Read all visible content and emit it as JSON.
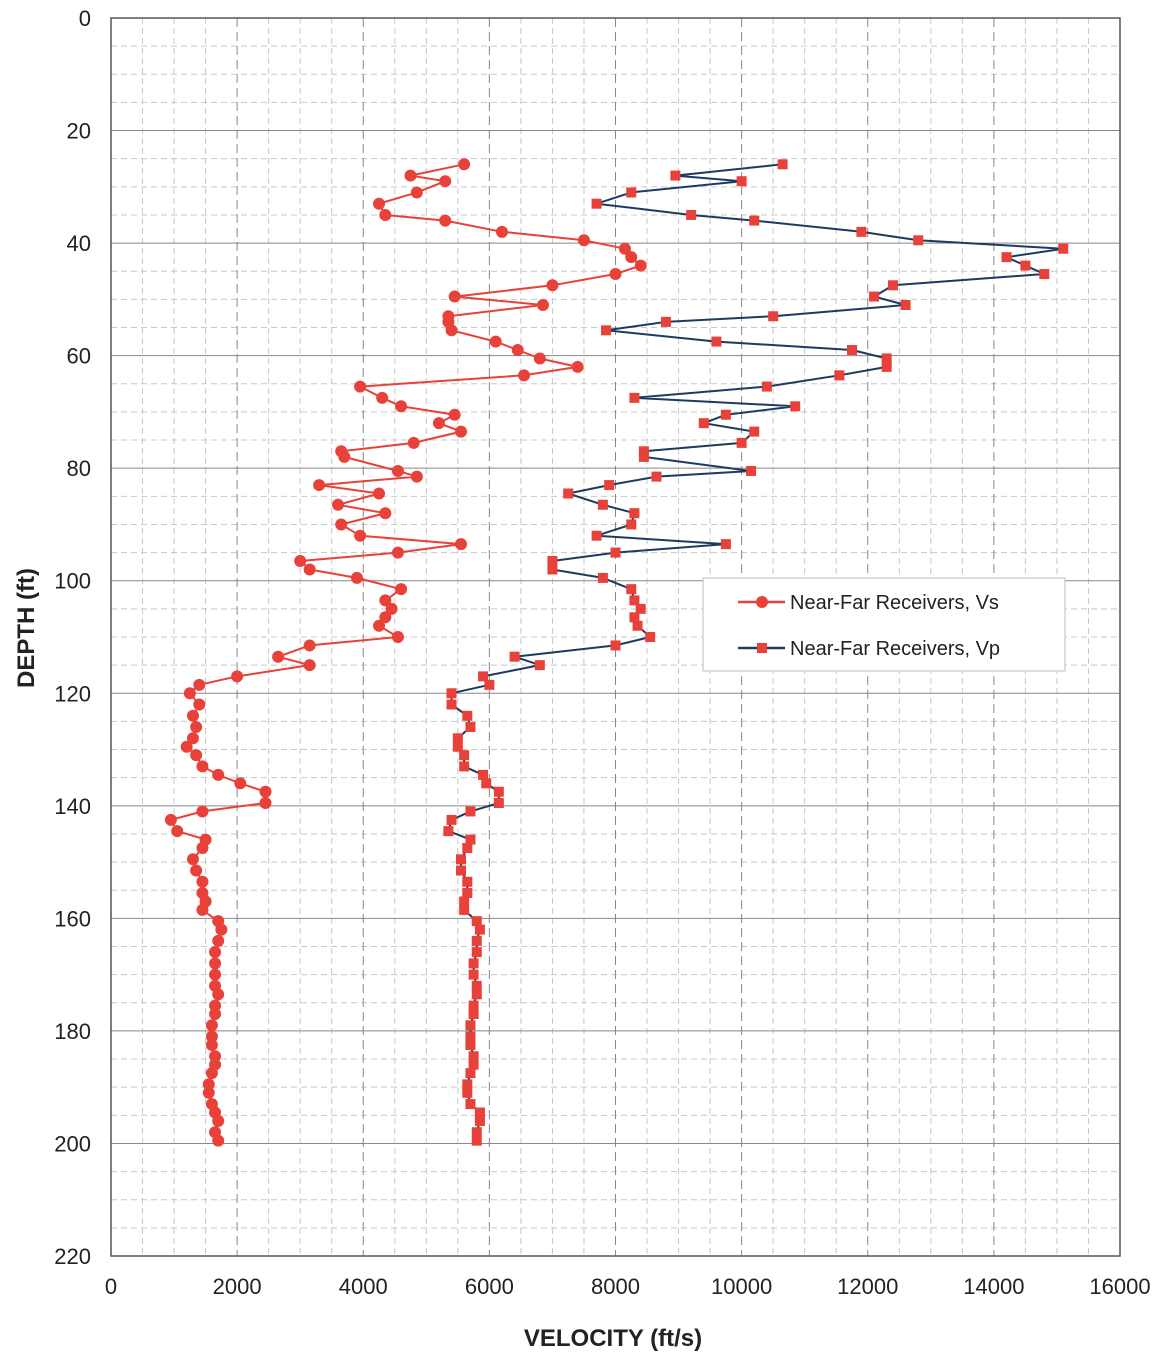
{
  "chart_data": {
    "type": "scatter",
    "xlabel": "VELOCITY (ft/s)",
    "ylabel": "DEPTH (ft)",
    "xlim": [
      0,
      16000
    ],
    "ylim": [
      220,
      0
    ],
    "x_ticks": [
      "0",
      "2000",
      "4000",
      "6000",
      "8000",
      "10000",
      "12000",
      "14000",
      "16000"
    ],
    "y_ticks": [
      "0",
      "20",
      "40",
      "60",
      "80",
      "100",
      "120",
      "140",
      "160",
      "180",
      "200",
      "220"
    ],
    "grid": true,
    "legend_position": "right-middle",
    "colors": {
      "vs": "#e8413a",
      "vp": "#1f3a5f",
      "vp_marker": "#e8413a"
    },
    "series": [
      {
        "name": "Near-Far Receivers, Vs",
        "marker": "circle",
        "points": [
          [
            5600,
            26
          ],
          [
            4750,
            28
          ],
          [
            5300,
            29
          ],
          [
            4850,
            31
          ],
          [
            4250,
            33
          ],
          [
            4350,
            35
          ],
          [
            5300,
            36
          ],
          [
            6200,
            38
          ],
          [
            7500,
            39.5
          ],
          [
            8150,
            41
          ],
          [
            8250,
            42.5
          ],
          [
            8400,
            44
          ],
          [
            8000,
            45.5
          ],
          [
            7000,
            47.5
          ],
          [
            5450,
            49.5
          ],
          [
            6850,
            51
          ],
          [
            5350,
            53
          ],
          [
            5350,
            54
          ],
          [
            5400,
            55.5
          ],
          [
            6100,
            57.5
          ],
          [
            6450,
            59
          ],
          [
            6800,
            60.5
          ],
          [
            7400,
            62
          ],
          [
            6550,
            63.5
          ],
          [
            3950,
            65.5
          ],
          [
            4300,
            67.5
          ],
          [
            4600,
            69
          ],
          [
            5450,
            70.5
          ],
          [
            5200,
            72
          ],
          [
            5550,
            73.5
          ],
          [
            4800,
            75.5
          ],
          [
            3650,
            77
          ],
          [
            3700,
            78
          ],
          [
            4550,
            80.5
          ],
          [
            4850,
            81.5
          ],
          [
            3300,
            83
          ],
          [
            4250,
            84.5
          ],
          [
            3600,
            86.5
          ],
          [
            4350,
            88
          ],
          [
            3650,
            90
          ],
          [
            3950,
            92
          ],
          [
            5550,
            93.5
          ],
          [
            4550,
            95
          ],
          [
            3000,
            96.5
          ],
          [
            3150,
            98
          ],
          [
            3900,
            99.5
          ],
          [
            4600,
            101.5
          ],
          [
            4350,
            103.5
          ],
          [
            4450,
            105
          ],
          [
            4350,
            106.5
          ],
          [
            4250,
            108
          ],
          [
            4550,
            110
          ],
          [
            3150,
            111.5
          ],
          [
            2650,
            113.5
          ],
          [
            3150,
            115
          ],
          [
            2000,
            117
          ],
          [
            1400,
            118.5
          ],
          [
            1250,
            120
          ],
          [
            1400,
            122
          ],
          [
            1300,
            124
          ],
          [
            1350,
            126
          ],
          [
            1300,
            128
          ],
          [
            1200,
            129.5
          ],
          [
            1350,
            131
          ],
          [
            1450,
            133
          ],
          [
            1700,
            134.5
          ],
          [
            2050,
            136
          ],
          [
            2450,
            137.5
          ],
          [
            2450,
            139.5
          ],
          [
            1450,
            141
          ],
          [
            950,
            142.5
          ],
          [
            1050,
            144.5
          ],
          [
            1500,
            146
          ],
          [
            1450,
            147.5
          ],
          [
            1300,
            149.5
          ],
          [
            1350,
            151.5
          ],
          [
            1450,
            153.5
          ],
          [
            1450,
            155.5
          ],
          [
            1500,
            157
          ],
          [
            1450,
            158.5
          ],
          [
            1700,
            160.5
          ],
          [
            1750,
            162
          ],
          [
            1700,
            164
          ],
          [
            1650,
            166
          ],
          [
            1650,
            168
          ],
          [
            1650,
            170
          ],
          [
            1650,
            172
          ],
          [
            1700,
            173.5
          ],
          [
            1650,
            175.5
          ],
          [
            1650,
            177
          ],
          [
            1600,
            179
          ],
          [
            1600,
            181
          ],
          [
            1600,
            182.5
          ],
          [
            1650,
            184.5
          ],
          [
            1650,
            186
          ],
          [
            1600,
            187.5
          ],
          [
            1550,
            189.5
          ],
          [
            1550,
            191
          ],
          [
            1600,
            193
          ],
          [
            1650,
            194.5
          ],
          [
            1700,
            196
          ],
          [
            1650,
            198
          ],
          [
            1700,
            199.5
          ]
        ]
      },
      {
        "name": "Near-Far Receivers, Vp",
        "marker": "square",
        "points": [
          [
            10650,
            26
          ],
          [
            8950,
            28
          ],
          [
            10000,
            29
          ],
          [
            8250,
            31
          ],
          [
            7700,
            33
          ],
          [
            9200,
            35
          ],
          [
            10200,
            36
          ],
          [
            11900,
            38
          ],
          [
            12800,
            39.5
          ],
          [
            15100,
            41
          ],
          [
            14200,
            42.5
          ],
          [
            14500,
            44
          ],
          [
            14800,
            45.5
          ],
          [
            12400,
            47.5
          ],
          [
            12100,
            49.5
          ],
          [
            12600,
            51
          ],
          [
            10500,
            53
          ],
          [
            8800,
            54
          ],
          [
            7850,
            55.5
          ],
          [
            9600,
            57.5
          ],
          [
            11750,
            59
          ],
          [
            12300,
            60.5
          ],
          [
            12300,
            62
          ],
          [
            11550,
            63.5
          ],
          [
            10400,
            65.5
          ],
          [
            8300,
            67.5
          ],
          [
            10850,
            69
          ],
          [
            9750,
            70.5
          ],
          [
            9400,
            72
          ],
          [
            10200,
            73.5
          ],
          [
            10000,
            75.5
          ],
          [
            8450,
            77
          ],
          [
            8450,
            78
          ],
          [
            10150,
            80.5
          ],
          [
            8650,
            81.5
          ],
          [
            7900,
            83
          ],
          [
            7250,
            84.5
          ],
          [
            7800,
            86.5
          ],
          [
            8300,
            88
          ],
          [
            8250,
            90
          ],
          [
            7700,
            92
          ],
          [
            9750,
            93.5
          ],
          [
            8000,
            95
          ],
          [
            7000,
            96.5
          ],
          [
            7000,
            98
          ],
          [
            7800,
            99.5
          ],
          [
            8250,
            101.5
          ],
          [
            8300,
            103.5
          ],
          [
            8400,
            105
          ],
          [
            8300,
            106.5
          ],
          [
            8350,
            108
          ],
          [
            8550,
            110
          ],
          [
            8000,
            111.5
          ],
          [
            6400,
            113.5
          ],
          [
            6800,
            115
          ],
          [
            5900,
            117
          ],
          [
            6000,
            118.5
          ],
          [
            5400,
            120
          ],
          [
            5400,
            122
          ],
          [
            5650,
            124
          ],
          [
            5700,
            126
          ],
          [
            5500,
            128
          ],
          [
            5500,
            129.5
          ],
          [
            5600,
            131
          ],
          [
            5600,
            133
          ],
          [
            5900,
            134.5
          ],
          [
            5950,
            136
          ],
          [
            6150,
            137.5
          ],
          [
            6150,
            139.5
          ],
          [
            5700,
            141
          ],
          [
            5400,
            142.5
          ],
          [
            5350,
            144.5
          ],
          [
            5700,
            146
          ],
          [
            5650,
            147.5
          ],
          [
            5550,
            149.5
          ],
          [
            5550,
            151.5
          ],
          [
            5650,
            153.5
          ],
          [
            5650,
            155.5
          ],
          [
            5600,
            157
          ],
          [
            5600,
            158.5
          ],
          [
            5800,
            160.5
          ],
          [
            5850,
            162
          ],
          [
            5800,
            164
          ],
          [
            5800,
            166
          ],
          [
            5750,
            168
          ],
          [
            5750,
            170
          ],
          [
            5800,
            172
          ],
          [
            5800,
            173.5
          ],
          [
            5750,
            175.5
          ],
          [
            5750,
            177
          ],
          [
            5700,
            179
          ],
          [
            5700,
            181
          ],
          [
            5700,
            182.5
          ],
          [
            5750,
            184.5
          ],
          [
            5750,
            186
          ],
          [
            5700,
            187.5
          ],
          [
            5650,
            189.5
          ],
          [
            5650,
            191
          ],
          [
            5700,
            193
          ],
          [
            5850,
            194.5
          ],
          [
            5850,
            196
          ],
          [
            5800,
            198
          ],
          [
            5800,
            199.5
          ]
        ]
      }
    ]
  }
}
